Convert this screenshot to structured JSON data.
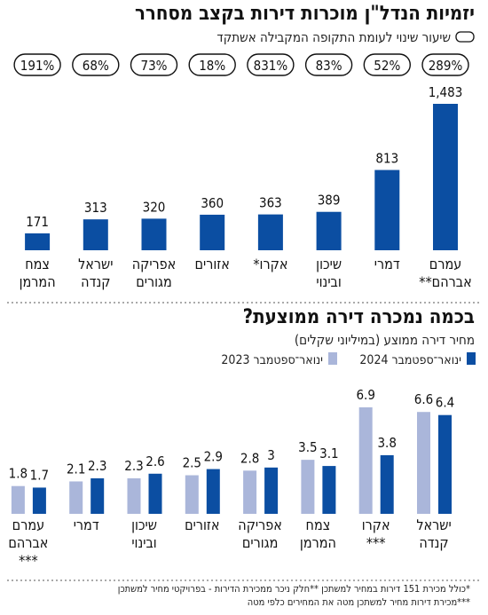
{
  "colors": {
    "dark": "#0b4ea2",
    "light": "#aab6da",
    "divider": "#555555"
  },
  "chart_data": [
    {
      "type": "bar",
      "title": "יזמיות הנדל\"ן מוכרות דירות בקצב מסחרר",
      "subtitle": "שיעור שינוי לעומת התקופה המקבילה אשתקד",
      "categories": [
        [
          "עמרם",
          "אברהם**"
        ],
        [
          "דמרי"
        ],
        [
          "שיכון",
          "ובינוי"
        ],
        [
          "אקרו*"
        ],
        [
          "אזורים"
        ],
        [
          "אפריקה",
          "מגורים"
        ],
        [
          "ישראל",
          "קנדה"
        ],
        [
          "צמח",
          "המרמן"
        ]
      ],
      "values": [
        1483,
        813,
        389,
        363,
        360,
        320,
        313,
        171
      ],
      "value_labels": [
        "1,483",
        "813",
        "389",
        "363",
        "360",
        "320",
        "313",
        "171"
      ],
      "change_pct": [
        "289%",
        "52%",
        "83%",
        "831%",
        "18%",
        "73%",
        "68%",
        "191%"
      ],
      "ylim": [
        0,
        1483
      ]
    },
    {
      "type": "bar",
      "title": "בכמה נמכרה דירה ממוצעת?",
      "subtitle": "מחיר דירה ממוצע (במיליוני שקלים)",
      "categories": [
        [
          "ישראל",
          "קנדה"
        ],
        [
          "אקרו",
          "***"
        ],
        [
          "צמח",
          "המרמן"
        ],
        [
          "אפריקה",
          "מגורים"
        ],
        [
          "אזורים"
        ],
        [
          "שיכון",
          "ובינוי"
        ],
        [
          "דמרי"
        ],
        [
          "עמרם",
          "אברהם",
          "***"
        ]
      ],
      "series": [
        {
          "name": "ינואר־ספטמבר 2024",
          "values": [
            6.4,
            3.8,
            3.1,
            3,
            2.9,
            2.6,
            2.3,
            1.7
          ],
          "labels": [
            "6.4",
            "3.8",
            "3.1",
            "3",
            "2.9",
            "2.6",
            "2.3",
            "1.7"
          ]
        },
        {
          "name": "ינואר־ספטמבר 2023",
          "values": [
            6.6,
            6.9,
            3.5,
            2.8,
            2.5,
            2.3,
            2.1,
            1.8
          ],
          "labels": [
            "6.6",
            "6.9",
            "3.5",
            "2.8",
            "2.5",
            "2.3",
            "2.1",
            "1.8"
          ]
        }
      ],
      "ylim": [
        0,
        6.9
      ]
    }
  ],
  "footnotes": [
    "*כולל מכירת 151 דירות במחיר למשתכן **חלק ניכר ממכירת הדירות - בפרויקטי מחיר למשתכן",
    "***מכירת דירות מחיר למשתכן מטה את המחירים כלפי מטה"
  ]
}
